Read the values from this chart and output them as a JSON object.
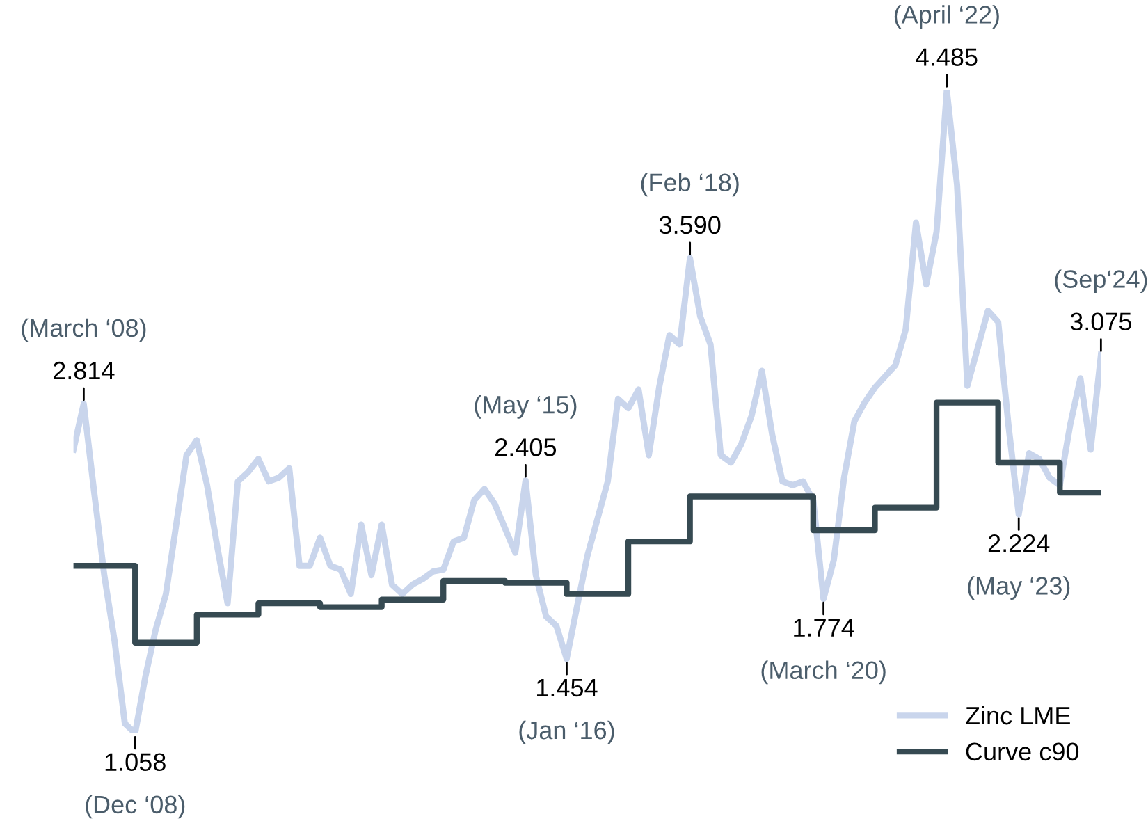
{
  "chart_data": {
    "type": "line",
    "categories": [
      null,
      null,
      null,
      null,
      null,
      null,
      null,
      null,
      null,
      null,
      null,
      null,
      null,
      null,
      null,
      null,
      null,
      null,
      null,
      null,
      null,
      null,
      null,
      null,
      null,
      null,
      null,
      null,
      null,
      null,
      null,
      null,
      null,
      null,
      null,
      null,
      null,
      null,
      null,
      null,
      null,
      null,
      null,
      null,
      null,
      null,
      null,
      null,
      null,
      null,
      null,
      null,
      null,
      null,
      null,
      null,
      null,
      null,
      null,
      null,
      null,
      null,
      null,
      null,
      null,
      null,
      null,
      null,
      null,
      null,
      null,
      null,
      null,
      null,
      null,
      null,
      null,
      null,
      null,
      null,
      null,
      null,
      null,
      null,
      null,
      null,
      null,
      null,
      null,
      null,
      null,
      null,
      null,
      null,
      null,
      null,
      null,
      null,
      null,
      null,
      null
    ],
    "series": [
      {
        "name": "Zinc LME",
        "color": "#c9d5ec",
        "values": [
          2.57,
          2.814,
          2.35,
          1.9,
          1.55,
          1.11,
          1.058,
          1.36,
          1.61,
          1.8,
          2.17,
          2.54,
          2.62,
          2.38,
          2.05,
          1.75,
          2.4,
          2.45,
          2.52,
          2.4,
          2.42,
          2.47,
          1.95,
          1.95,
          2.1,
          1.95,
          1.93,
          1.8,
          2.17,
          1.9,
          2.17,
          1.85,
          1.8,
          1.85,
          1.88,
          1.92,
          1.93,
          2.08,
          2.1,
          2.3,
          2.36,
          2.28,
          2.15,
          2.02,
          2.405,
          1.9,
          1.68,
          1.63,
          1.454,
          1.73,
          2.0,
          2.2,
          2.4,
          2.84,
          2.79,
          2.89,
          2.54,
          2.9,
          3.18,
          3.13,
          3.59,
          3.28,
          3.13,
          2.54,
          2.5,
          2.6,
          2.75,
          2.99,
          2.65,
          2.4,
          2.38,
          2.4,
          2.3,
          1.774,
          1.98,
          2.42,
          2.72,
          2.82,
          2.9,
          2.96,
          3.02,
          3.21,
          3.78,
          3.45,
          3.73,
          4.485,
          3.98,
          2.91,
          3.11,
          3.31,
          3.25,
          2.7,
          2.224,
          2.55,
          2.52,
          2.42,
          2.38,
          2.7,
          2.95,
          2.57,
          3.075
        ],
        "value_labels": [
          null,
          "2.814",
          null,
          null,
          null,
          null,
          "1.058",
          null,
          null,
          null,
          null,
          null,
          null,
          null,
          null,
          null,
          null,
          null,
          null,
          null,
          null,
          null,
          null,
          null,
          null,
          null,
          null,
          null,
          null,
          null,
          null,
          null,
          null,
          null,
          null,
          null,
          null,
          null,
          null,
          null,
          null,
          null,
          null,
          null,
          "2.405",
          null,
          null,
          null,
          "1.454",
          null,
          null,
          null,
          null,
          null,
          null,
          null,
          null,
          null,
          null,
          null,
          "3.590",
          null,
          null,
          null,
          null,
          null,
          null,
          null,
          null,
          null,
          null,
          null,
          null,
          "1.774",
          null,
          null,
          null,
          null,
          null,
          null,
          null,
          null,
          null,
          null,
          null,
          "4.485",
          null,
          null,
          null,
          null,
          null,
          null,
          "2.224",
          null,
          null,
          null,
          null,
          null,
          null,
          null,
          "3.075"
        ]
      },
      {
        "name": "Curve c90",
        "color": "#364a52",
        "type": "step",
        "values": [
          1.95,
          1.95,
          1.95,
          1.95,
          1.95,
          1.95,
          1.54,
          1.54,
          1.54,
          1.54,
          1.54,
          1.54,
          1.69,
          1.69,
          1.69,
          1.69,
          1.69,
          1.69,
          1.75,
          1.75,
          1.75,
          1.75,
          1.75,
          1.75,
          1.73,
          1.73,
          1.73,
          1.73,
          1.73,
          1.73,
          1.77,
          1.77,
          1.77,
          1.77,
          1.77,
          1.77,
          1.87,
          1.87,
          1.87,
          1.87,
          1.87,
          1.87,
          1.86,
          1.86,
          1.86,
          1.86,
          1.86,
          1.86,
          1.8,
          1.8,
          1.8,
          1.8,
          1.8,
          1.8,
          2.08,
          2.08,
          2.08,
          2.08,
          2.08,
          2.08,
          2.32,
          2.32,
          2.32,
          2.32,
          2.32,
          2.32,
          2.32,
          2.32,
          2.32,
          2.32,
          2.32,
          2.32,
          2.14,
          2.14,
          2.14,
          2.14,
          2.14,
          2.14,
          2.26,
          2.26,
          2.26,
          2.26,
          2.26,
          2.26,
          2.82,
          2.82,
          2.82,
          2.82,
          2.82,
          2.82,
          2.5,
          2.5,
          2.5,
          2.5,
          2.5,
          2.5,
          2.34,
          2.34,
          2.34,
          2.34,
          2.34
        ]
      }
    ],
    "annotations": [
      "(March ‘08)",
      "(Dec ‘08)",
      "(May ‘15)",
      "(Jan ‘16)",
      "(Feb ‘18)",
      "(March ‘20)",
      "(April ‘22)",
      "(May ‘23)",
      "(Sep‘24)"
    ],
    "legend": "bottom right"
  }
}
